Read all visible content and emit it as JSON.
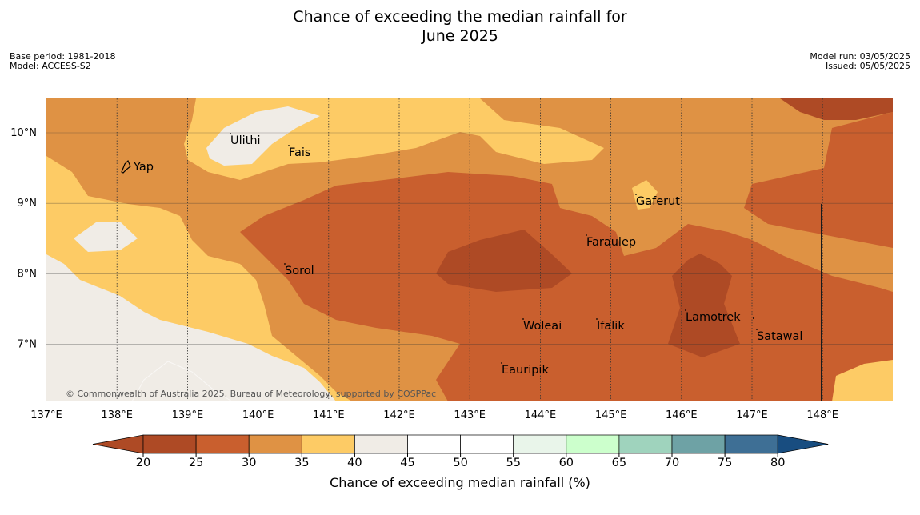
{
  "title": {
    "line1": "Chance of exceeding the median rainfall for",
    "line2": "June 2025"
  },
  "meta": {
    "base_period": "Base period: 1981-2018",
    "model": "Model: ACCESS-S2",
    "model_run": "Model run: 03/05/2025",
    "issued": "Issued: 05/05/2025"
  },
  "map": {
    "lat_labels": [
      "10°N",
      "9°N",
      "8°N",
      "7°N"
    ],
    "lon_labels": [
      "137°E",
      "138°E",
      "139°E",
      "140°E",
      "141°E",
      "142°E",
      "143°E",
      "144°E",
      "145°E",
      "146°E",
      "147°E",
      "148°E"
    ],
    "places": [
      "Ulithi",
      "Fais",
      "Yap",
      "Gaferut",
      "Faraulep",
      "Sorol",
      "Lamotrek",
      "Woleai",
      "Ifalik",
      "Satawal",
      "Eauripik"
    ],
    "copyright": "© Commonwealth of Australia 2025, Bureau of Meteorology, supported by COSPPac"
  },
  "colorbar": {
    "ticks": [
      "20",
      "25",
      "30",
      "35",
      "40",
      "45",
      "50",
      "55",
      "60",
      "65",
      "70",
      "75",
      "80"
    ],
    "colors": [
      "#ae4a25",
      "#ae4a25",
      "#c95f2e",
      "#df9244",
      "#fdcb65",
      "#f0ece6",
      "#ffffff",
      "#ffffff",
      "#e9f5ea",
      "#ccffcc",
      "#9fd3bd",
      "#6ea2a5",
      "#3e6f95",
      "#184d80"
    ],
    "label": "Chance of exceeding median rainfall (%)"
  }
}
